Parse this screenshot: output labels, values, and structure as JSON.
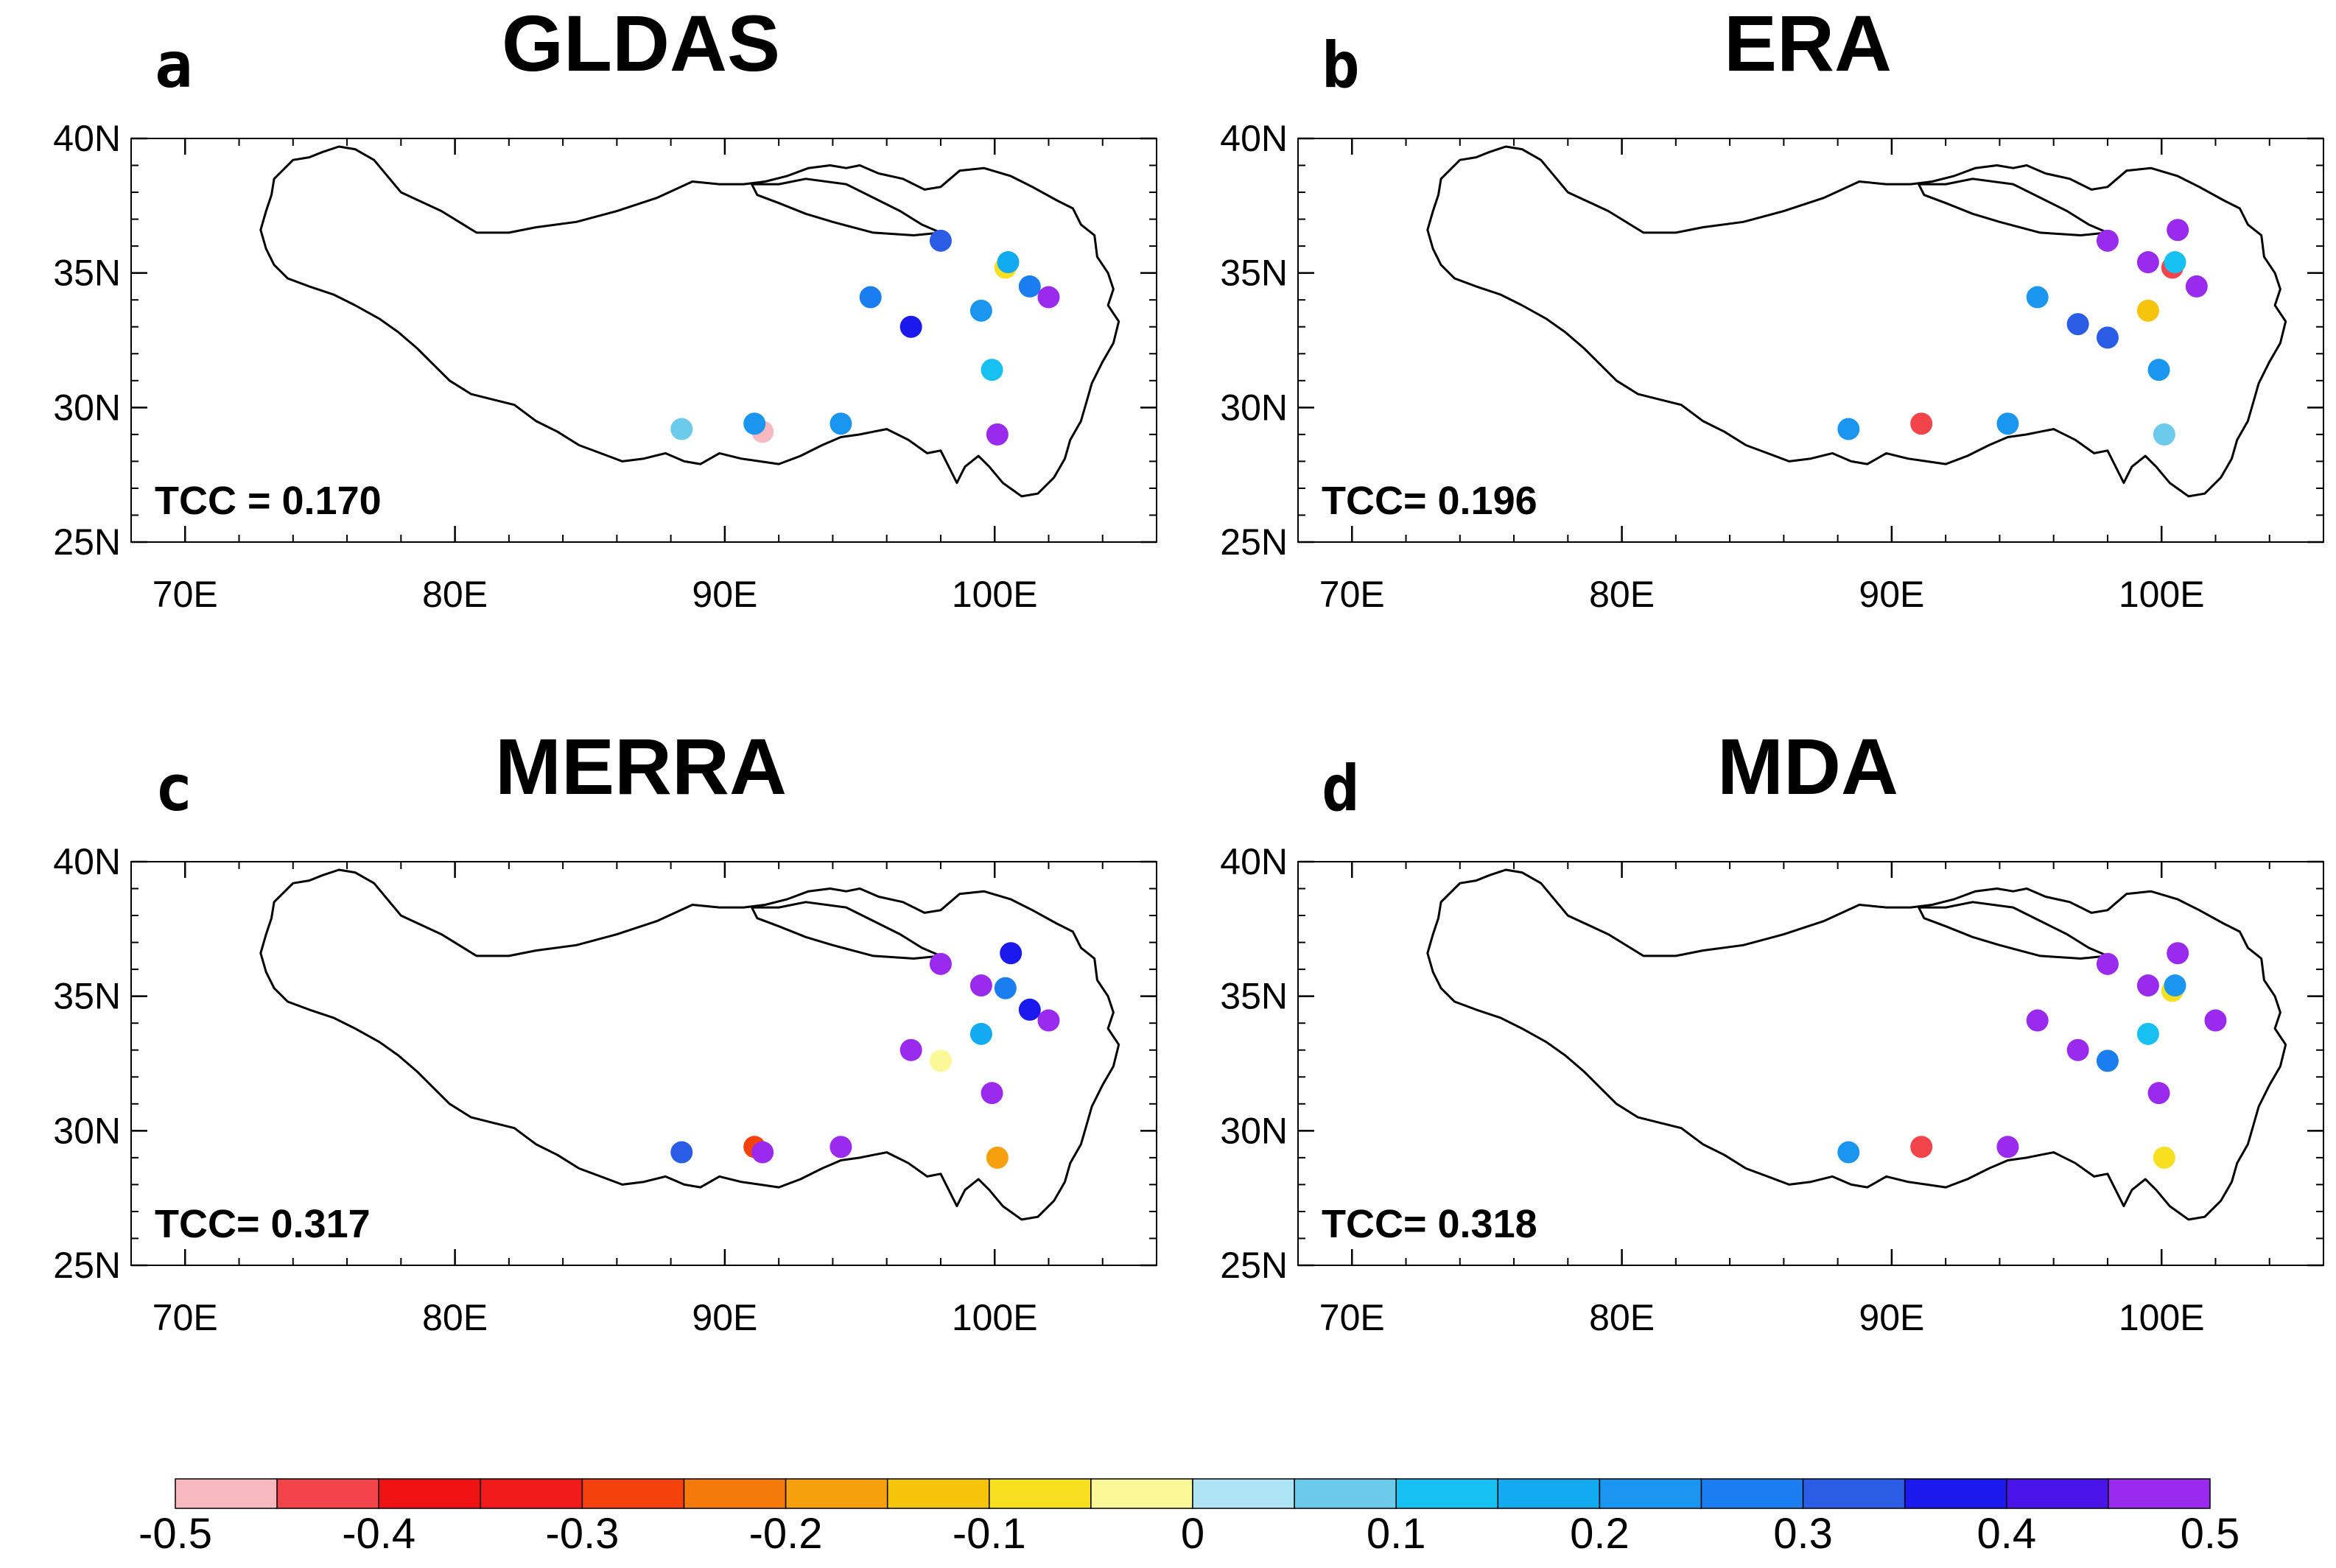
{
  "figure": {
    "lon_range": [
      68,
      106
    ],
    "lat_range": [
      25,
      40
    ],
    "lon_ticks": [
      "70E",
      "80E",
      "90E",
      "100E"
    ],
    "lon_tick_values": [
      70,
      80,
      90,
      100
    ],
    "lat_ticks": [
      "25N",
      "30N",
      "35N",
      "40N"
    ],
    "lat_tick_values": [
      25,
      30,
      35,
      40
    ]
  },
  "panels": [
    {
      "letter": "a",
      "title": "GLDAS",
      "tcc": "TCC = 0.170",
      "stations": [
        {
          "lon": 98.0,
          "lat": 36.2,
          "value": 0.3
        },
        {
          "lon": 100.4,
          "lat": 35.2,
          "value": -0.1
        },
        {
          "lon": 100.5,
          "lat": 35.4,
          "value": 0.15
        },
        {
          "lon": 101.3,
          "lat": 34.5,
          "value": 0.25
        },
        {
          "lon": 102.0,
          "lat": 34.1,
          "value": 0.5
        },
        {
          "lon": 95.4,
          "lat": 34.1,
          "value": 0.25
        },
        {
          "lon": 99.5,
          "lat": 33.6,
          "value": 0.2
        },
        {
          "lon": 96.9,
          "lat": 33.0,
          "value": 0.35
        },
        {
          "lon": 99.9,
          "lat": 31.4,
          "value": 0.1
        },
        {
          "lon": 88.4,
          "lat": 29.2,
          "value": 0.05
        },
        {
          "lon": 91.4,
          "lat": 29.1,
          "value": -0.5
        },
        {
          "lon": 91.1,
          "lat": 29.4,
          "value": 0.2
        },
        {
          "lon": 94.3,
          "lat": 29.4,
          "value": 0.2
        },
        {
          "lon": 100.1,
          "lat": 29.0,
          "value": 0.45
        }
      ]
    },
    {
      "letter": "b",
      "title": "ERA",
      "tcc": "TCC= 0.196",
      "stations": [
        {
          "lon": 98.0,
          "lat": 36.2,
          "value": 0.5
        },
        {
          "lon": 100.4,
          "lat": 35.2,
          "value": -0.4
        },
        {
          "lon": 100.5,
          "lat": 35.4,
          "value": 0.1
        },
        {
          "lon": 100.6,
          "lat": 36.6,
          "value": 0.5
        },
        {
          "lon": 99.5,
          "lat": 35.4,
          "value": 0.5
        },
        {
          "lon": 101.3,
          "lat": 34.5,
          "value": 0.5
        },
        {
          "lon": 95.4,
          "lat": 34.1,
          "value": 0.2
        },
        {
          "lon": 99.5,
          "lat": 33.6,
          "value": -0.15
        },
        {
          "lon": 96.9,
          "lat": 33.1,
          "value": 0.3
        },
        {
          "lon": 98.0,
          "lat": 32.6,
          "value": 0.3
        },
        {
          "lon": 99.9,
          "lat": 31.4,
          "value": 0.2
        },
        {
          "lon": 88.4,
          "lat": 29.2,
          "value": 0.2
        },
        {
          "lon": 91.1,
          "lat": 29.4,
          "value": -0.4
        },
        {
          "lon": 94.3,
          "lat": 29.4,
          "value": 0.2
        },
        {
          "lon": 100.1,
          "lat": 29.0,
          "value": 0.05
        }
      ]
    },
    {
      "letter": "c",
      "title": "MERRA",
      "tcc": "TCC= 0.317",
      "stations": [
        {
          "lon": 98.0,
          "lat": 36.2,
          "value": 0.5
        },
        {
          "lon": 100.6,
          "lat": 36.6,
          "value": 0.35
        },
        {
          "lon": 99.5,
          "lat": 35.4,
          "value": 0.5
        },
        {
          "lon": 100.4,
          "lat": 35.3,
          "value": 0.25
        },
        {
          "lon": 101.3,
          "lat": 34.5,
          "value": 0.35
        },
        {
          "lon": 102.0,
          "lat": 34.1,
          "value": 0.5
        },
        {
          "lon": 99.5,
          "lat": 33.6,
          "value": 0.15
        },
        {
          "lon": 96.9,
          "lat": 33.0,
          "value": 0.5
        },
        {
          "lon": 98.0,
          "lat": 32.6,
          "value": -0.05
        },
        {
          "lon": 99.9,
          "lat": 31.4,
          "value": 0.5
        },
        {
          "lon": 88.4,
          "lat": 29.2,
          "value": 0.3
        },
        {
          "lon": 91.1,
          "lat": 29.4,
          "value": -0.3
        },
        {
          "lon": 91.4,
          "lat": 29.2,
          "value": 0.5
        },
        {
          "lon": 94.3,
          "lat": 29.4,
          "value": 0.5
        },
        {
          "lon": 100.1,
          "lat": 29.0,
          "value": -0.2
        }
      ]
    },
    {
      "letter": "d",
      "title": "MDA",
      "tcc": "TCC= 0.318",
      "stations": [
        {
          "lon": 98.0,
          "lat": 36.2,
          "value": 0.5
        },
        {
          "lon": 100.6,
          "lat": 36.6,
          "value": 0.5
        },
        {
          "lon": 99.5,
          "lat": 35.4,
          "value": 0.5
        },
        {
          "lon": 100.4,
          "lat": 35.2,
          "value": -0.1
        },
        {
          "lon": 100.5,
          "lat": 35.4,
          "value": 0.2
        },
        {
          "lon": 95.4,
          "lat": 34.1,
          "value": 0.45
        },
        {
          "lon": 102.0,
          "lat": 34.1,
          "value": 0.5
        },
        {
          "lon": 99.5,
          "lat": 33.6,
          "value": 0.1
        },
        {
          "lon": 96.9,
          "lat": 33.0,
          "value": 0.5
        },
        {
          "lon": 98.0,
          "lat": 32.6,
          "value": 0.25
        },
        {
          "lon": 99.9,
          "lat": 31.4,
          "value": 0.5
        },
        {
          "lon": 88.4,
          "lat": 29.2,
          "value": 0.2
        },
        {
          "lon": 91.1,
          "lat": 29.4,
          "value": -0.4
        },
        {
          "lon": 94.3,
          "lat": 29.4,
          "value": 0.5
        },
        {
          "lon": 100.1,
          "lat": 29.0,
          "value": -0.1
        }
      ]
    }
  ],
  "colorbar": {
    "min": -0.5,
    "max": 0.5,
    "step": 0.05,
    "colors": [
      "#f7b8bf",
      "#f2444a",
      "#ee1212",
      "#f01a1a",
      "#f5420c",
      "#f57a0c",
      "#f5a00c",
      "#f7c40c",
      "#f8e020",
      "#fbf898",
      "#aee4f6",
      "#6ccaea",
      "#16c0f0",
      "#12aaf0",
      "#1a96f0",
      "#1a7ef0",
      "#2a5ce6",
      "#1a1aee",
      "#4a14e8",
      "#9a2aee"
    ],
    "labels": [
      "-0.5",
      "-0.4",
      "-0.3",
      "-0.2",
      "-0.1",
      "0",
      "0.1",
      "0.2",
      "0.3",
      "0.4",
      "0.5"
    ],
    "label_values": [
      -0.5,
      -0.4,
      -0.3,
      -0.2,
      -0.1,
      0,
      0.1,
      0.2,
      0.3,
      0.4,
      0.5
    ]
  }
}
